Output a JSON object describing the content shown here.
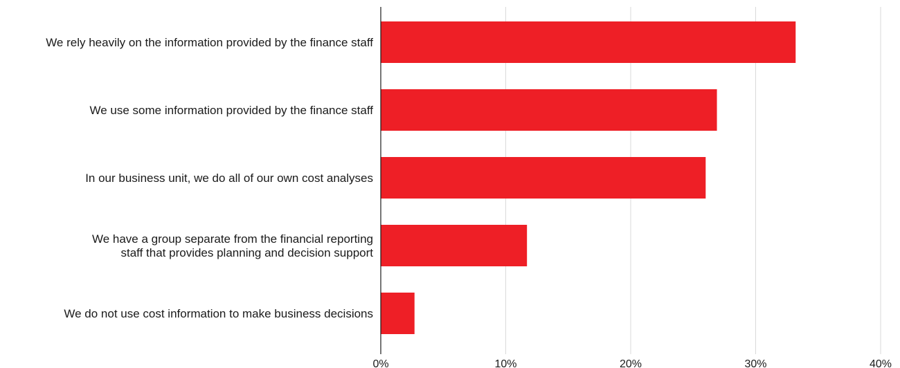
{
  "colors": {
    "bar": "#ee1f26",
    "grid": "#d9d9d9",
    "text": "#1a1a1a"
  },
  "chart_data": {
    "type": "bar",
    "orientation": "horizontal",
    "title": "",
    "xlabel": "",
    "ylabel": "",
    "xlim": [
      0,
      40
    ],
    "x_ticks": [
      "0%",
      "10%",
      "20%",
      "30%",
      "40%"
    ],
    "grid": true,
    "legend": "none",
    "categories": [
      [
        "We rely heavily on the information provided by the finance staff"
      ],
      [
        "We use some information provided by the finance staff"
      ],
      [
        "In our business unit, we do all of our own cost analyses"
      ],
      [
        "We have a group separate from the financial reporting",
        "staff that provides planning and decision support"
      ],
      [
        "We do not use cost information to make business decisions"
      ]
    ],
    "values": [
      33.2,
      26.9,
      26.0,
      11.7,
      2.7
    ]
  }
}
